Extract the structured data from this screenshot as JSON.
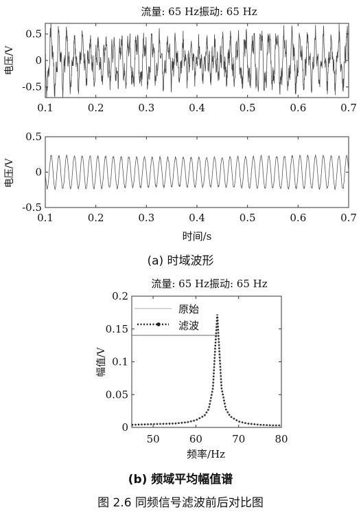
{
  "panel_a": {
    "caption": "(a)  时域波形",
    "chart_data": [
      {
        "type": "line",
        "title": "流量: 65 Hz振动: 65 Hz",
        "xlabel": "",
        "ylabel": "电压/V",
        "xlim": [
          0.1,
          0.7
        ],
        "ylim": [
          -0.7,
          0.7
        ],
        "xticks": [
          "0.1",
          "0.2",
          "0.3",
          "0.4",
          "0.5",
          "0.6",
          "0.7"
        ],
        "yticks": [
          "0.5",
          "0",
          "-0.5"
        ],
        "grid": false,
        "signal": {
          "kind": "noisy-sine",
          "frequency_hz": 65,
          "amplitude_v": 0.45
        }
      },
      {
        "type": "line",
        "title": "",
        "xlabel": "时间/s",
        "ylabel": "电压/V",
        "xlim": [
          0.1,
          0.7
        ],
        "ylim": [
          -0.5,
          0.5
        ],
        "xticks": [
          "0.1",
          "0.2",
          "0.3",
          "0.4",
          "0.5",
          "0.6",
          "0.7"
        ],
        "yticks": [
          "0.5",
          "0",
          "-0.5"
        ],
        "grid": false,
        "signal": {
          "kind": "sine",
          "frequency_hz": 65,
          "amplitude_v": 0.22
        }
      }
    ]
  },
  "panel_b": {
    "caption": "(b)  频域平均幅值谱",
    "chart_data": {
      "type": "line",
      "title": "流量: 65 Hz振动: 65 Hz",
      "xlabel": "频率/Hz",
      "ylabel": "幅值/V",
      "xlim": [
        45,
        80
      ],
      "ylim": [
        0,
        0.2
      ],
      "xticks": [
        "50",
        "60",
        "70",
        "80"
      ],
      "yticks": [
        "0.2",
        "0.15",
        "0.1",
        "0.05",
        "0"
      ],
      "grid": false,
      "legend": {
        "placement": "top-left"
      },
      "series": [
        {
          "name": "原始",
          "style": "solid",
          "color": "#bbbbbb",
          "x": [
            45,
            50,
            55,
            58,
            60,
            62,
            63,
            64,
            64.5,
            65,
            65.5,
            66,
            67,
            68,
            70,
            72,
            75,
            78,
            80
          ],
          "y": [
            0.004,
            0.005,
            0.006,
            0.008,
            0.011,
            0.018,
            0.028,
            0.06,
            0.12,
            0.17,
            0.115,
            0.06,
            0.028,
            0.017,
            0.009,
            0.006,
            0.004,
            0.003,
            0.003
          ]
        },
        {
          "name": "滤波",
          "style": "dotted",
          "color": "#222222",
          "x": [
            45,
            50,
            55,
            58,
            60,
            62,
            63,
            64,
            64.5,
            65,
            65.5,
            66,
            67,
            68,
            70,
            72,
            75,
            78,
            80
          ],
          "y": [
            0.004,
            0.005,
            0.006,
            0.008,
            0.011,
            0.018,
            0.028,
            0.06,
            0.12,
            0.172,
            0.115,
            0.06,
            0.028,
            0.017,
            0.009,
            0.006,
            0.004,
            0.003,
            0.003
          ]
        }
      ]
    }
  },
  "figure_caption": "图  2.6  同频信号滤波前后对比图"
}
